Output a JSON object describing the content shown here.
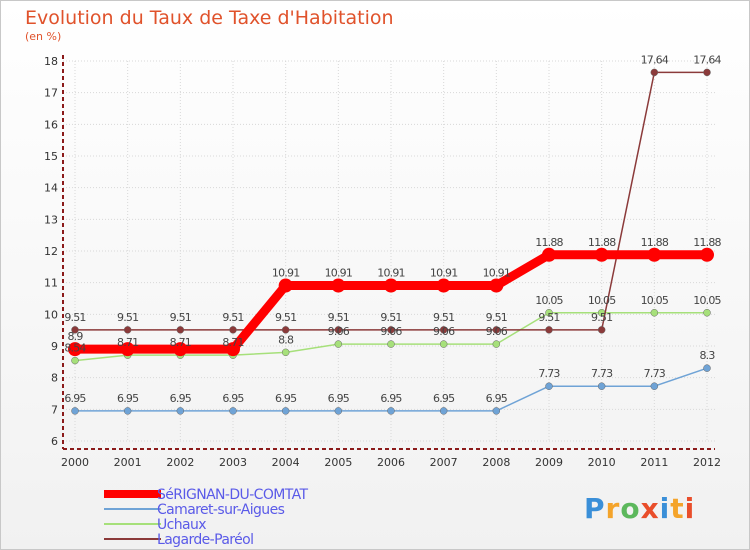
{
  "header": {
    "title": "Evolution du Taux de Taxe d'Habitation",
    "subtitle": "(en %)"
  },
  "logo": {
    "text": "Proxiti",
    "colors": [
      "#3a8fd8",
      "#f4a42b",
      "#5cb85c",
      "#e94e2b",
      "#3a8fd8",
      "#f4a42b",
      "#e94e2b"
    ]
  },
  "chart_data": {
    "type": "line",
    "title": "Evolution du Taux de Taxe d'Habitation",
    "subtitle": "(en %)",
    "xlabel": "",
    "ylabel": "",
    "x": [
      "2000",
      "2001",
      "2002",
      "2003",
      "2004",
      "2005",
      "2006",
      "2007",
      "2008",
      "2009",
      "2010",
      "2011",
      "2012"
    ],
    "ylim": [
      6,
      18
    ],
    "yticks": [
      "6",
      "7",
      "8",
      "9",
      "10",
      "11",
      "12",
      "13",
      "14",
      "15",
      "16",
      "17",
      "18"
    ],
    "grid": true,
    "legend_position": "bottom-left",
    "series": [
      {
        "name": "SéRIGNAN-DU-COMTAT",
        "color": "#ff0000",
        "values": [
          8.9,
          8.9,
          8.9,
          8.9,
          10.91,
          10.91,
          10.91,
          10.91,
          10.91,
          11.88,
          11.88,
          11.88,
          11.88
        ],
        "labels": [
          "8.9",
          "",
          "",
          "",
          "10.91",
          "10.91",
          "10.91",
          "10.91",
          "10.91",
          "11.88",
          "11.88",
          "11.88",
          "11.88"
        ]
      },
      {
        "name": "Camaret-sur-Aigues",
        "color": "#6fa3d6",
        "values": [
          6.95,
          6.95,
          6.95,
          6.95,
          6.95,
          6.95,
          6.95,
          6.95,
          6.95,
          7.73,
          7.73,
          7.73,
          8.3
        ],
        "labels": [
          "6.95",
          "6.95",
          "6.95",
          "6.95",
          "6.95",
          "6.95",
          "6.95",
          "6.95",
          "6.95",
          "7.73",
          "7.73",
          "7.73",
          "8.3"
        ]
      },
      {
        "name": "Uchaux",
        "color": "#a6e07a",
        "values": [
          8.54,
          8.71,
          8.71,
          8.71,
          8.8,
          9.06,
          9.06,
          9.06,
          9.06,
          10.05,
          10.05,
          10.05,
          10.05
        ],
        "labels": [
          "8.54",
          "8.71",
          "8.71",
          "8.71",
          "8.8",
          "9.06",
          "9.06",
          "9.06",
          "9.06",
          "10.05",
          "10.05",
          "10.05",
          "10.05"
        ]
      },
      {
        "name": "Lagarde-Paréol",
        "color": "#8b3a3a",
        "values": [
          9.51,
          9.51,
          9.51,
          9.51,
          9.51,
          9.51,
          9.51,
          9.51,
          9.51,
          9.51,
          9.51,
          17.64,
          17.64
        ],
        "labels": [
          "9.51",
          "9.51",
          "9.51",
          "9.51",
          "9.51",
          "9.51",
          "9.51",
          "9.51",
          "9.51",
          "9.51",
          "9.51",
          "17.64",
          "17.64"
        ]
      }
    ]
  }
}
